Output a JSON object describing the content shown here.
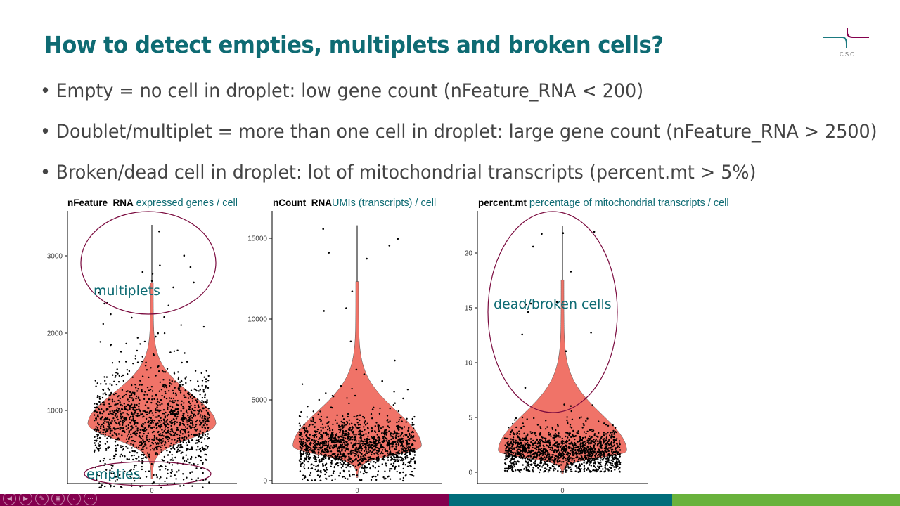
{
  "slide": {
    "title": "How to detect empties, multiplets and broken cells?",
    "bullets": [
      "Empty = no cell in droplet: low gene count (nFeature_RNA < 200)",
      "Doublet/multiplet = more than one cell in droplet: large gene count (nFeature_RNA > 2500)",
      "Broken/dead cell in droplet: lot of mitochondrial transcripts (percent.mt > 5%)"
    ],
    "logo_text": "CSC"
  },
  "colors": {
    "title": "#0e6b73",
    "violin": "#f07368",
    "ellipse": "#7a0a3e",
    "footer": [
      "#84004e",
      "#006d7a",
      "#69b23c"
    ]
  },
  "chart_data": [
    {
      "type": "violin",
      "metric": "nFeature_RNA",
      "caption": "expressed genes / cell",
      "yticks": [
        1000,
        2000,
        3000
      ],
      "ylim": [
        0,
        3500
      ],
      "xtick": "0",
      "annotations": [
        "multiplets",
        "empties"
      ]
    },
    {
      "type": "violin",
      "metric": "nCount_RNA",
      "caption": "UMIs (transcripts) / cell",
      "yticks": [
        0,
        5000,
        10000,
        15000
      ],
      "ylim": [
        0,
        16500
      ],
      "xtick": "0"
    },
    {
      "type": "violin",
      "metric": "percent.mt",
      "caption": "percentage of mitochondrial transcripts / cell",
      "yticks": [
        0,
        5,
        10,
        15,
        20
      ],
      "ylim": [
        0,
        23
      ],
      "xtick": "0",
      "annotations": [
        "dead/broken cells"
      ]
    }
  ],
  "player": {
    "buttons": [
      "previous",
      "next",
      "pen",
      "slides",
      "zoom",
      "more"
    ]
  }
}
